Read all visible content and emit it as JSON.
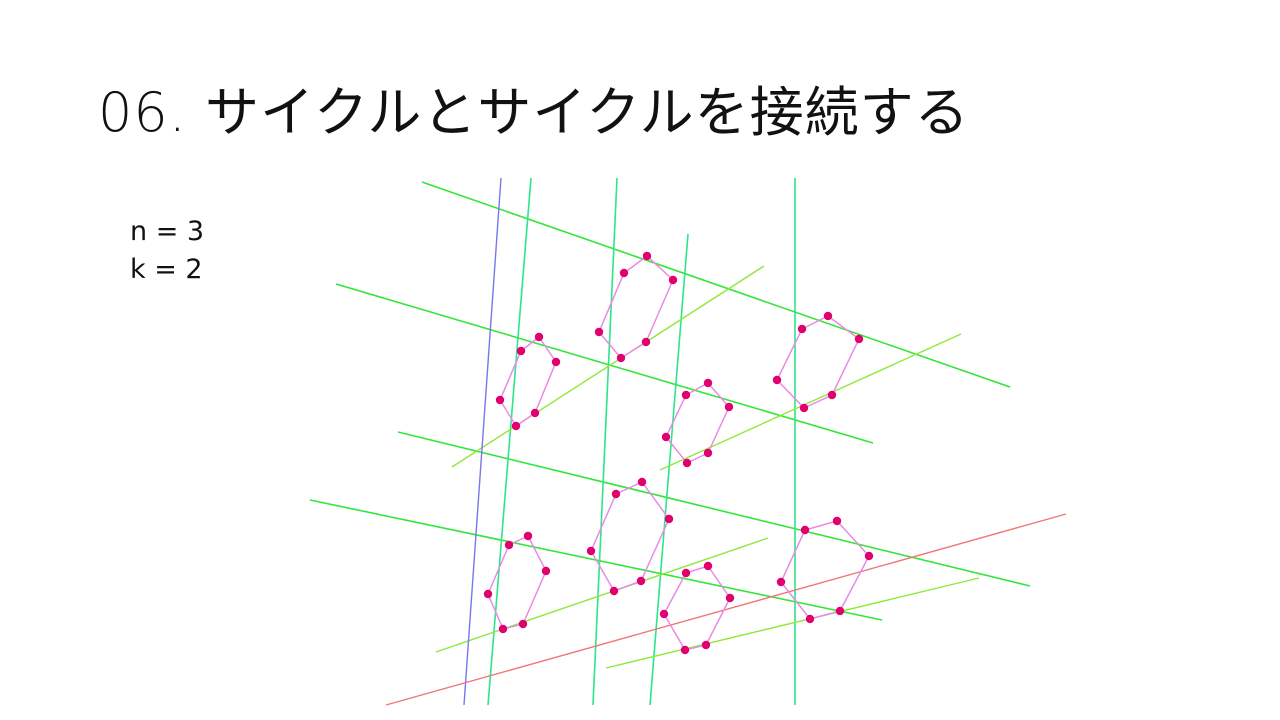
{
  "slide": {
    "title": "06. サイクルとサイクルを接続する",
    "params": [
      "n = 3",
      "k = 2"
    ]
  },
  "colors": {
    "green": "#33e63a",
    "green_alt": "#2ee58a",
    "yellow_green": "#8fe83a",
    "blue": "#7777ee",
    "red": "#ee7777",
    "cycle_edge": "#e98ae6",
    "vertex": "#e0006e"
  }
}
